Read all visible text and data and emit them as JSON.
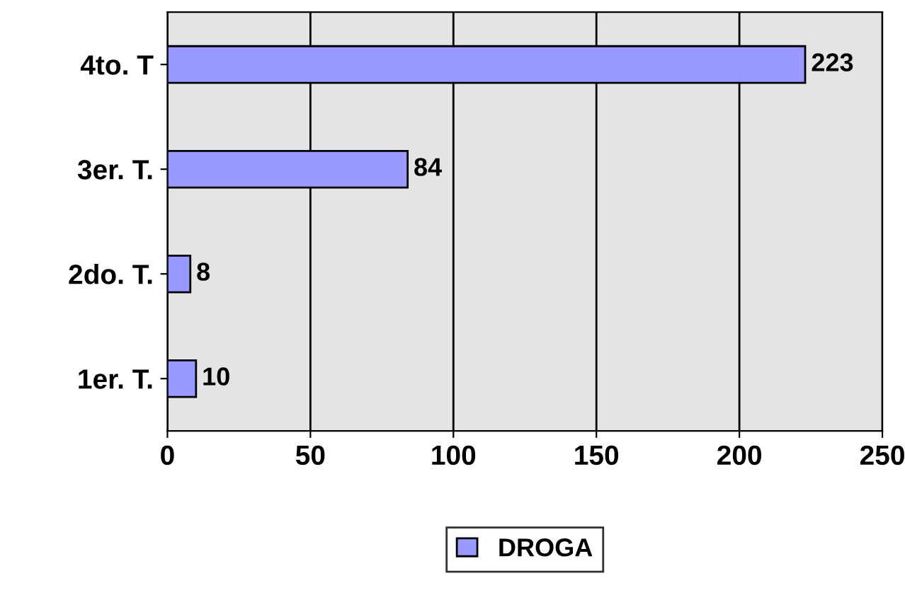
{
  "chart_data": {
    "type": "bar",
    "orientation": "horizontal",
    "categories": [
      "4to. T",
      "3er. T.",
      "2do. T.",
      "1er. T."
    ],
    "series": [
      {
        "name": "DROGA",
        "color": "#9999ff",
        "values": [
          223,
          84,
          8,
          10
        ]
      }
    ],
    "xlim": [
      0,
      250
    ],
    "xticks": [
      0,
      50,
      100,
      150,
      200,
      250
    ],
    "grid": "x",
    "legend": "bottom",
    "data_labels": true
  }
}
